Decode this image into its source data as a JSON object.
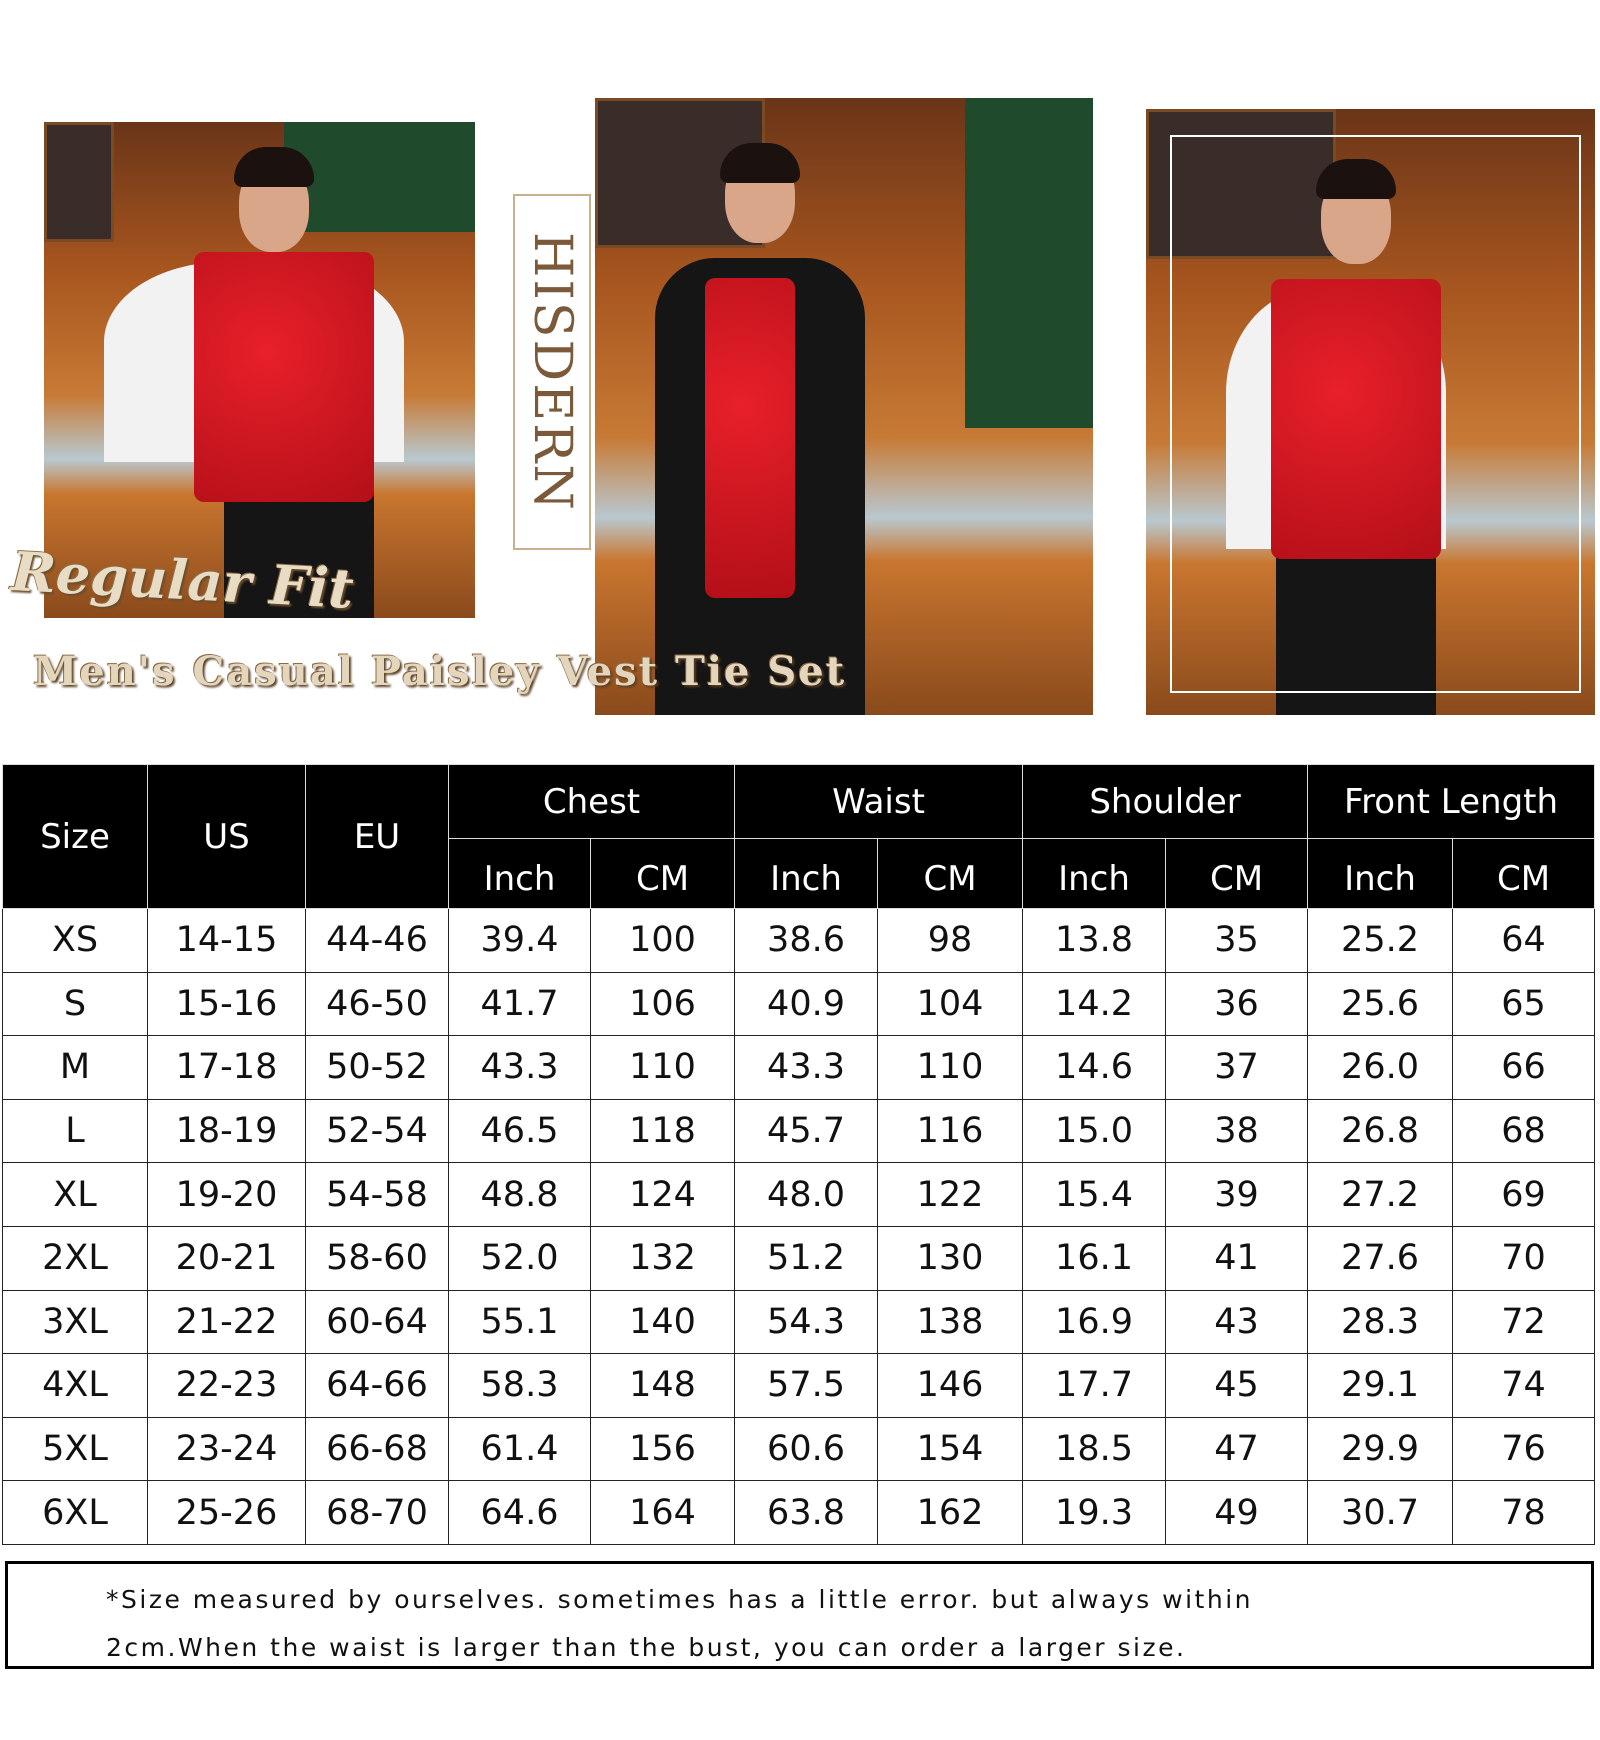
{
  "brand": "HISDERN",
  "fit_label": "Regular Fit",
  "title": "Men's Casual Paisley Vest Tie Set",
  "colors": {
    "vest": "#d8141e",
    "header_bg": "#000000",
    "bar_wood": "#b5652a"
  },
  "table": {
    "headers": {
      "size": "Size",
      "us": "US",
      "eu": "EU",
      "groups": [
        "Chest",
        "Waist",
        "Shoulder",
        "Front Length"
      ],
      "units": [
        "Inch",
        "CM",
        "Inch",
        "CM",
        "Inch",
        "CM",
        "Inch",
        "CM"
      ]
    },
    "rows": [
      [
        "XS",
        "14-15",
        "44-46",
        "39.4",
        "100",
        "38.6",
        "98",
        "13.8",
        "35",
        "25.2",
        "64"
      ],
      [
        "S",
        "15-16",
        "46-50",
        "41.7",
        "106",
        "40.9",
        "104",
        "14.2",
        "36",
        "25.6",
        "65"
      ],
      [
        "M",
        "17-18",
        "50-52",
        "43.3",
        "110",
        "43.3",
        "110",
        "14.6",
        "37",
        "26.0",
        "66"
      ],
      [
        "L",
        "18-19",
        "52-54",
        "46.5",
        "118",
        "45.7",
        "116",
        "15.0",
        "38",
        "26.8",
        "68"
      ],
      [
        "XL",
        "19-20",
        "54-58",
        "48.8",
        "124",
        "48.0",
        "122",
        "15.4",
        "39",
        "27.2",
        "69"
      ],
      [
        "2XL",
        "20-21",
        "58-60",
        "52.0",
        "132",
        "51.2",
        "130",
        "16.1",
        "41",
        "27.6",
        "70"
      ],
      [
        "3XL",
        "21-22",
        "60-64",
        "55.1",
        "140",
        "54.3",
        "138",
        "16.9",
        "43",
        "28.3",
        "72"
      ],
      [
        "4XL",
        "22-23",
        "64-66",
        "58.3",
        "148",
        "57.5",
        "146",
        "17.7",
        "45",
        "29.1",
        "74"
      ],
      [
        "5XL",
        "23-24",
        "66-68",
        "61.4",
        "156",
        "60.6",
        "154",
        "18.5",
        "47",
        "29.9",
        "76"
      ],
      [
        "6XL",
        "25-26",
        "68-70",
        "64.6",
        "164",
        "63.8",
        "162",
        "19.3",
        "49",
        "30.7",
        "78"
      ]
    ]
  },
  "note": {
    "line1": "*Size measured by ourselves. sometimes has a little error. but always within",
    "line2": "2cm.When the waist is larger than the bust, you can order a larger size."
  }
}
